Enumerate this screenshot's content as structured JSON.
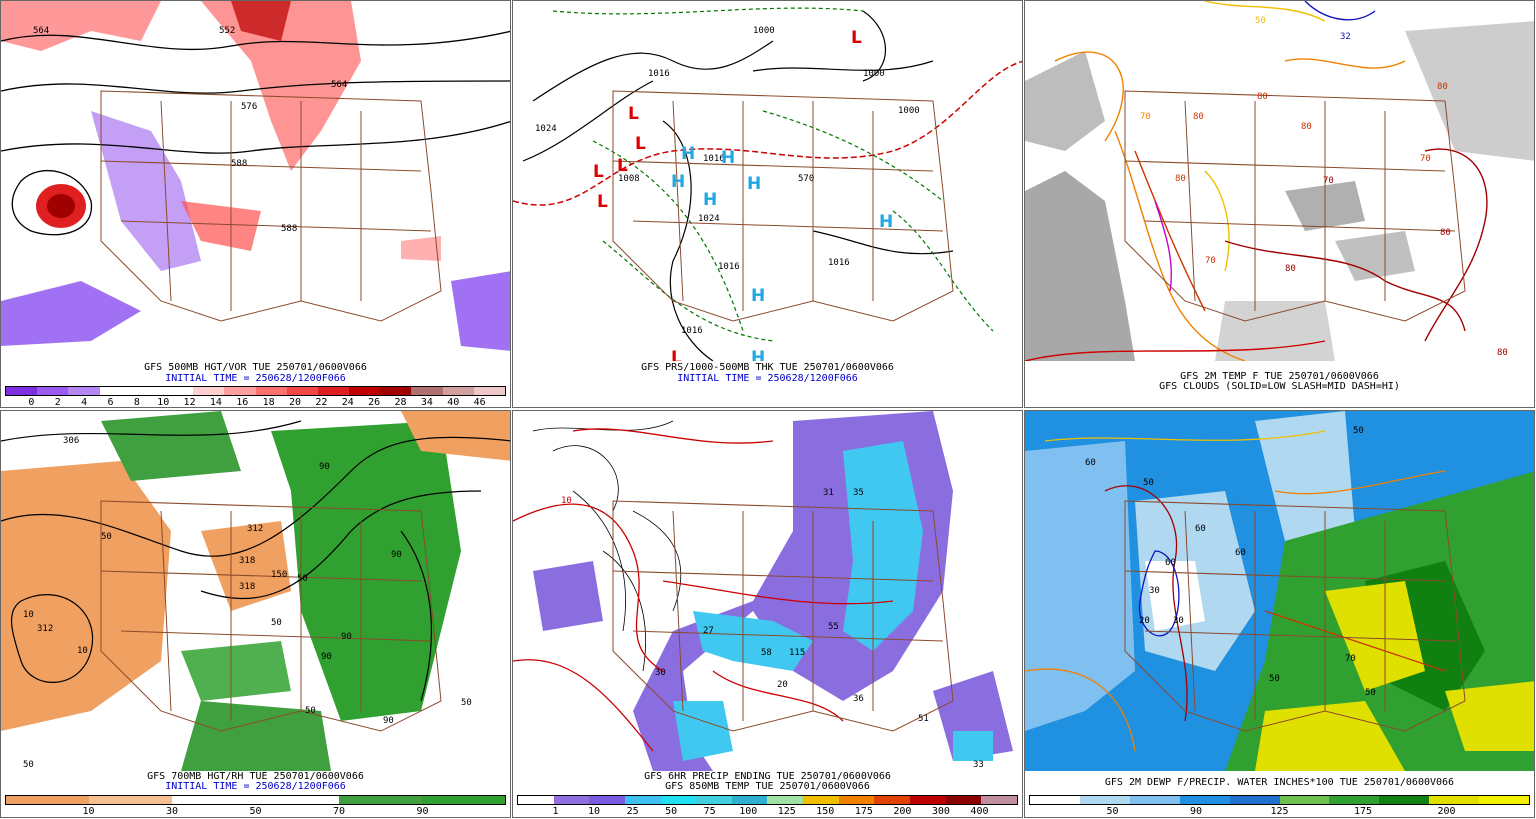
{
  "colors": {
    "state_border": "#8b4a2b",
    "contour": "#000000",
    "red_contour": "#cc0000",
    "thickness_green": "#007700",
    "H_color": "#22a7e0",
    "L_color": "#dd0000"
  },
  "panels": [
    {
      "id": "p1",
      "caption_line1": "GFS 500MB HGT/VOR TUE 250701/0600V066",
      "caption_line2": "INITIAL TIME = 250628/1200F066",
      "contour_labels": [
        "564",
        "552",
        "564",
        "576",
        "588",
        "588"
      ],
      "colorbar": {
        "colors": [
          "#7b2fe0",
          "#9a5af0",
          "#b488f4",
          "#ffffff",
          "#ffffff",
          "#ffffff",
          "#ffd0d0",
          "#ffa0a0",
          "#ff7070",
          "#f04848",
          "#e02020",
          "#c00000",
          "#a00000",
          "#b07070",
          "#d0a0a0",
          "#f0c8c8"
        ],
        "ticks": [
          "0",
          "2",
          "4",
          "6",
          "8",
          "10",
          "12",
          "14",
          "16",
          "18",
          "20",
          "22",
          "24",
          "26",
          "28",
          "34",
          "40",
          "46"
        ]
      }
    },
    {
      "id": "p2",
      "caption_line1": "GFS PRS/1000-500MB THK TUE 250701/0600V066",
      "caption_line2": "INITIAL TIME = 250628/1200F066",
      "contour_labels": [
        "1016",
        "1024",
        "1000",
        "1000",
        "1008",
        "1016",
        "1016",
        "1016",
        "1024",
        "1016",
        "1000",
        "570"
      ],
      "highs": [
        "H",
        "H",
        "H",
        "H",
        "H",
        "H",
        "H",
        "H"
      ],
      "lows": [
        "L",
        "L",
        "L",
        "L",
        "L",
        "L",
        "L"
      ]
    },
    {
      "id": "p3",
      "caption_line1": "GFS 2M TEMP F TUE 250701/0600V066",
      "caption_line2": "GFS CLOUDS (SOLID=LOW SLASH=MID DASH=HI)",
      "contour_labels": [
        "50",
        "70",
        "80",
        "80",
        "70",
        "80",
        "80",
        "70",
        "80",
        "80",
        "70",
        "80",
        "80",
        "32"
      ]
    },
    {
      "id": "p4",
      "caption_line1": "GFS 700MB HGT/RH TUE 250701/0600V066",
      "caption_line2": "INITIAL TIME = 250628/1200F066",
      "contour_labels": [
        "306",
        "50",
        "312",
        "318",
        "150",
        "50",
        "90",
        "90",
        "312",
        "318",
        "10",
        "50",
        "90",
        "90",
        "10",
        "50",
        "90",
        "50",
        "50"
      ],
      "colorbar": {
        "colors": [
          "#f0a060",
          "#f5c090",
          "#ffffff",
          "#ffffff",
          "#40a040",
          "#30a030"
        ],
        "ticks": [
          "10",
          "30",
          "50",
          "70",
          "90"
        ]
      }
    },
    {
      "id": "p5",
      "caption_line1": "GFS 6HR PRECIP ENDING TUE 250701/0600V066",
      "caption_line2": "GFS 850MB TEMP TUE 250701/0600V066",
      "contour_labels": [
        "10",
        "30",
        "31",
        "35",
        "20",
        "58",
        "115",
        "55",
        "36",
        "51",
        "33",
        "27"
      ],
      "colorbar": {
        "colors": [
          "#ffffff",
          "#9070e0",
          "#7a5ae0",
          "#40c0f0",
          "#20e0f0",
          "#40d0e0",
          "#30b0d0",
          "#a0e0a0",
          "#f0c000",
          "#f08000",
          "#e04000",
          "#c00000",
          "#8b0000",
          "#c090a0"
        ],
        "ticks": [
          "1",
          "10",
          "25",
          "50",
          "75",
          "100",
          "125",
          "150",
          "175",
          "200",
          "300",
          "400"
        ]
      }
    },
    {
      "id": "p6",
      "caption_line1": "GFS 2M DEWP F/PRECIP. WATER INCHES*100 TUE 250701/0600V066",
      "contour_labels": [
        "50",
        "60",
        "50",
        "60",
        "60",
        "60",
        "30",
        "20",
        "30",
        "50",
        "70",
        "50"
      ],
      "colorbar": {
        "colors": [
          "#ffffff",
          "#b0d8f0",
          "#80c0f0",
          "#2090e0",
          "#2070d0",
          "#70c050",
          "#30a030",
          "#108010",
          "#e0e000",
          "#f0f000"
        ],
        "ticks": [
          "50",
          "90",
          "125",
          "175",
          "200"
        ]
      }
    }
  ]
}
